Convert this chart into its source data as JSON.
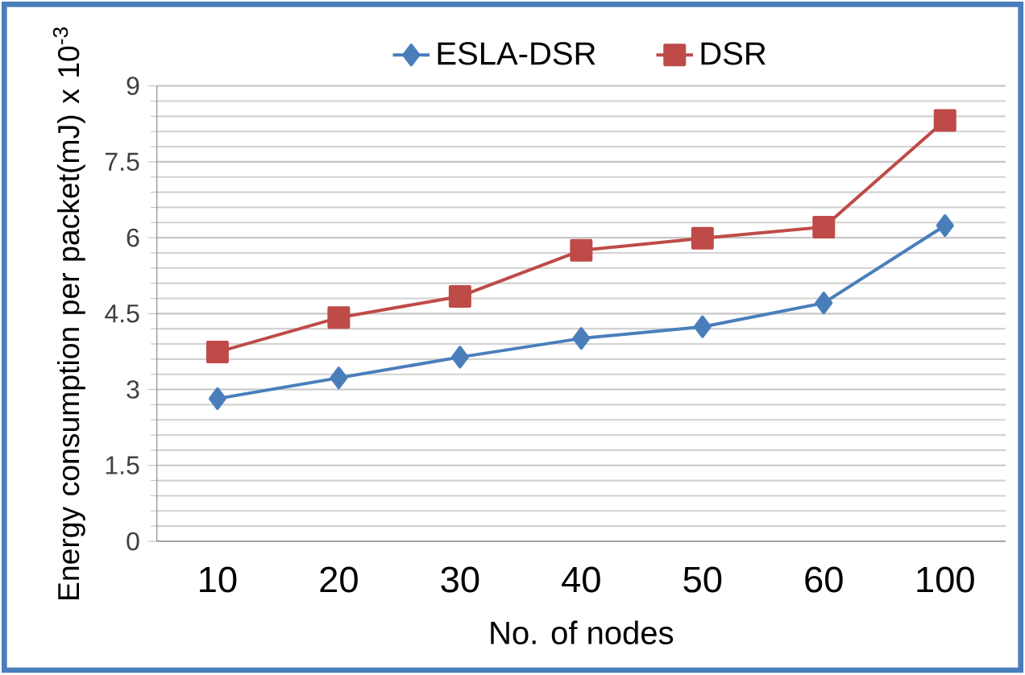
{
  "chart_data": {
    "type": "line",
    "xlabel": "No. of nodes",
    "ylabel": "Energy consumption per packet(mJ) x 10$^{-3}$",
    "categories": [
      "10",
      "20",
      "30",
      "40",
      "50",
      "60",
      "100"
    ],
    "series": [
      {
        "name": "ESLA-DSR",
        "color": "#4a7ebb",
        "marker": "diamond",
        "values": [
          2.82,
          3.23,
          3.64,
          4.01,
          4.24,
          4.71,
          6.24
        ]
      },
      {
        "name": "DSR",
        "color": "#be4b48",
        "marker": "square",
        "values": [
          3.74,
          4.42,
          4.84,
          5.75,
          5.99,
          6.21,
          8.32
        ]
      }
    ],
    "ylim": [
      0,
      9
    ],
    "yticks": [
      0,
      1.5,
      3,
      4.5,
      6,
      7.5,
      9
    ],
    "grid": "y",
    "legend": "top",
    "line_style": "solid"
  }
}
